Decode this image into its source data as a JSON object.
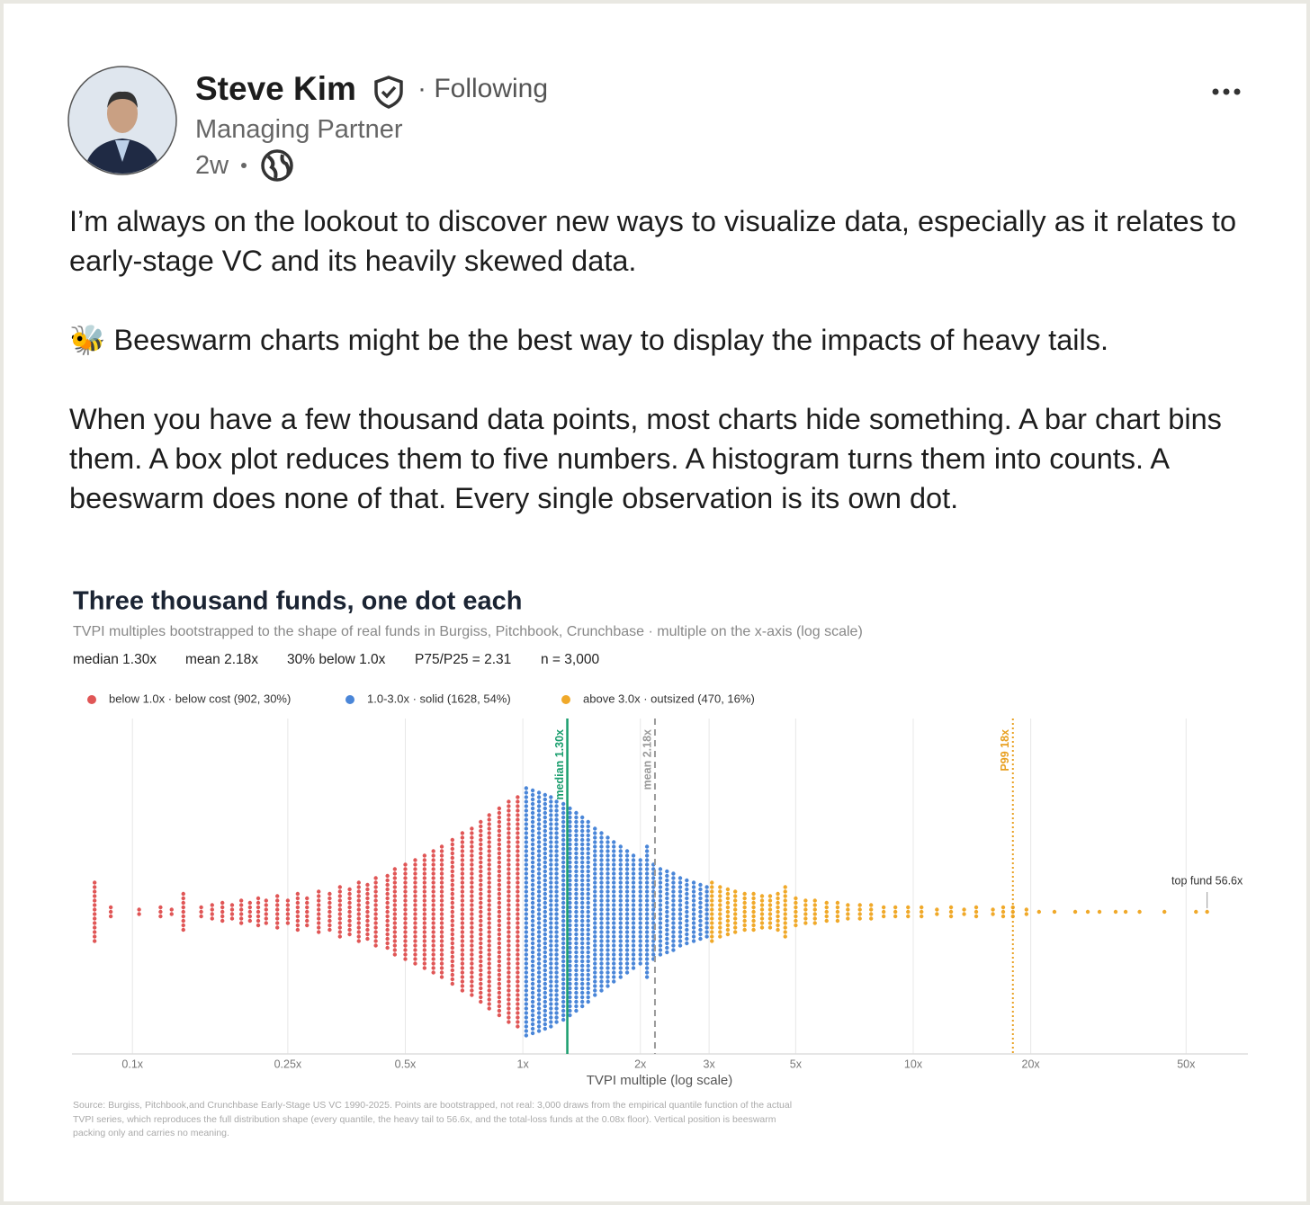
{
  "post": {
    "author": "Steve Kim",
    "follow_status": "· Following",
    "headline": "Managing Partner",
    "time": "2w",
    "paragraphs": [
      "I’m always on the lookout to discover new ways to visualize data, especially as it relates to early-stage VC and its heavily skewed data.",
      "🐝 Beeswarm charts might be the best way to display the impacts of heavy tails.",
      "When you have a few thousand data points, most charts hide something. A bar chart bins them. A box plot reduces them to five numbers. A histogram turns them into counts. A beeswarm does none of that. Every single observation is its own dot."
    ]
  },
  "chart_data": {
    "type": "beeswarm",
    "title": "Three thousand funds, one dot each",
    "subtitle": "TVPI multiples bootstrapped to the shape of real funds in Burgiss, Pitchbook, Crunchbase  ·  multiple on the x-axis (log scale)",
    "stats": [
      "median 1.30x",
      "mean 2.18x",
      "30% below 1.0x",
      "P75/P25 = 2.31",
      "n = 3,000"
    ],
    "xlabel": "TVPI multiple (log scale)",
    "xscale": "log",
    "grid": true,
    "xlim": [
      0.07,
      72
    ],
    "xticks": [
      {
        "value": 0.1,
        "label": "0.1x"
      },
      {
        "value": 0.25,
        "label": "0.25x"
      },
      {
        "value": 0.5,
        "label": "0.5x"
      },
      {
        "value": 1,
        "label": "1x"
      },
      {
        "value": 2,
        "label": "2x"
      },
      {
        "value": 3,
        "label": "3x"
      },
      {
        "value": 5,
        "label": "5x"
      },
      {
        "value": 10,
        "label": "10x"
      },
      {
        "value": 20,
        "label": "20x"
      },
      {
        "value": 50,
        "label": "50x"
      }
    ],
    "series": [
      {
        "name": "below 1.0x  ·  below cost  (902, 30%)",
        "color": "#e05656",
        "x": [
          0.08,
          0.088,
          0.104,
          0.118,
          0.126,
          0.135,
          0.15,
          0.16,
          0.17,
          0.18,
          0.19,
          0.2,
          0.21,
          0.22,
          0.235,
          0.25,
          0.265,
          0.28,
          0.3,
          0.32,
          0.34,
          0.36,
          0.38,
          0.4,
          0.42,
          0.45,
          0.47,
          0.5,
          0.53,
          0.56,
          0.59,
          0.62,
          0.66,
          0.7,
          0.74,
          0.78,
          0.82,
          0.87,
          0.92,
          0.97
        ],
        "values": [
          14,
          3,
          2,
          3,
          2,
          9,
          3,
          4,
          5,
          4,
          6,
          5,
          7,
          6,
          8,
          6,
          9,
          7,
          10,
          9,
          12,
          11,
          14,
          13,
          16,
          17,
          20,
          22,
          24,
          26,
          28,
          30,
          33,
          36,
          38,
          41,
          44,
          47,
          50,
          52
        ]
      },
      {
        "name": "1.0-3.0x  ·  solid  (1628, 54%)",
        "color": "#4a86d8",
        "x": [
          1.02,
          1.06,
          1.1,
          1.14,
          1.18,
          1.22,
          1.27,
          1.32,
          1.37,
          1.42,
          1.47,
          1.53,
          1.59,
          1.65,
          1.71,
          1.78,
          1.85,
          1.92,
          2.0,
          2.08,
          2.16,
          2.25,
          2.34,
          2.43,
          2.53,
          2.63,
          2.74,
          2.85,
          2.96
        ],
        "values": [
          56,
          55,
          54,
          53,
          52,
          50,
          49,
          47,
          45,
          43,
          41,
          38,
          36,
          34,
          32,
          30,
          28,
          26,
          24,
          30,
          22,
          20,
          19,
          18,
          16,
          15,
          14,
          13,
          12
        ]
      },
      {
        "name": "above 3.0x  ·  outsized  (470, 16%)",
        "color": "#f0a92a",
        "x": [
          3.05,
          3.2,
          3.35,
          3.5,
          3.7,
          3.9,
          4.1,
          4.3,
          4.5,
          4.7,
          5.0,
          5.3,
          5.6,
          6.0,
          6.4,
          6.8,
          7.3,
          7.8,
          8.4,
          9,
          9.7,
          10.5,
          11.5,
          12.5,
          13.5,
          14.5,
          16,
          17,
          18,
          19.5,
          21,
          23,
          26,
          28,
          30,
          33,
          35,
          38,
          44,
          53,
          56.6
        ],
        "values": [
          14,
          12,
          11,
          10,
          9,
          9,
          8,
          8,
          9,
          12,
          7,
          6,
          6,
          5,
          5,
          4,
          4,
          4,
          3,
          3,
          3,
          3,
          2,
          3,
          2,
          3,
          2,
          3,
          3,
          2,
          1,
          1,
          1,
          1,
          1,
          1,
          1,
          1,
          1,
          1,
          1
        ]
      }
    ],
    "reference_lines": [
      {
        "value": 1.3,
        "label": "median 1.30x",
        "color": "#1a9e6e",
        "style": "solid"
      },
      {
        "value": 2.18,
        "label": "mean 2.18x",
        "color": "#9a9a9a",
        "style": "dashed"
      },
      {
        "value": 18,
        "label": "P99 18x",
        "color": "#e8a020",
        "style": "dotted"
      }
    ],
    "annotations": [
      {
        "text": "top fund 56.6x",
        "x": 56.6
      }
    ],
    "source": "Source: Burgiss, Pitchbook,and Crunchbase Early-Stage US VC 1990-2025. Points are bootstrapped, not real: 3,000 draws from the empirical quantile function of the actual TVPI series, which reproduces the full distribution shape (every quantile, the heavy tail to 56.6x, and the total-loss funds at the 0.08x floor). Vertical position is beeswarm packing only and carries no meaning."
  }
}
